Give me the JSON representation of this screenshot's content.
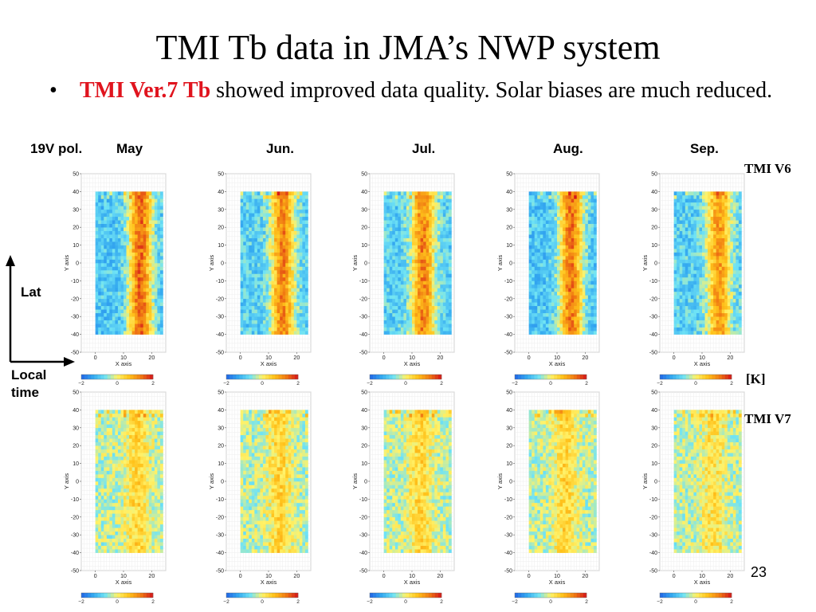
{
  "slide": {
    "title": "TMI Tb data in JMA’s NWP system",
    "bullet_marker": "•",
    "bullet_highlight": "TMI Ver.7 Tb",
    "bullet_rest": " showed improved data quality. Solar biases are much reduced.",
    "channel_label": "19V pol.",
    "row_labels": [
      "TMI V6",
      "TMI V7"
    ],
    "unit_label": "[K]",
    "lat_label": "Lat",
    "local_time_label": "Local time",
    "page_number": "23"
  },
  "chart_data": {
    "type": "heatmap",
    "months": [
      "May",
      "Jun.",
      "Jul.",
      "Aug.",
      "Sep."
    ],
    "versions": [
      "TMI V6",
      "TMI V7"
    ],
    "xlabel": "X axis",
    "ylabel": "Y axis",
    "xlim": [
      -5,
      25
    ],
    "ylim": [
      -50,
      50
    ],
    "xticks": [
      0,
      10,
      20
    ],
    "yticks": [
      -50,
      -40,
      -30,
      -20,
      -10,
      0,
      10,
      20,
      30,
      40,
      50
    ],
    "data_x_range": [
      0,
      24
    ],
    "data_y_range": [
      -40,
      40
    ],
    "colorbar": {
      "range": [
        -2,
        2
      ],
      "ticks": [
        -2,
        0,
        2
      ],
      "colors": [
        "#2166e6",
        "#34a9f0",
        "#6fe3f5",
        "#fff36a",
        "#ffc21a",
        "#f07a12",
        "#d4141a"
      ]
    },
    "description_note": "",
    "panels": [
      {
        "version": "TMI V6",
        "month": "May",
        "bias_pattern": {
          "cold_side_value": -1.0,
          "warm_center_x": 16,
          "warm_peak_value": 1.4
        }
      },
      {
        "version": "TMI V6",
        "month": "Jun.",
        "bias_pattern": {
          "cold_side_value": -0.9,
          "warm_center_x": 15,
          "warm_peak_value": 1.2
        }
      },
      {
        "version": "TMI V6",
        "month": "Jul.",
        "bias_pattern": {
          "cold_side_value": -0.9,
          "warm_center_x": 14,
          "warm_peak_value": 1.2
        }
      },
      {
        "version": "TMI V6",
        "month": "Aug.",
        "bias_pattern": {
          "cold_side_value": -1.0,
          "warm_center_x": 15,
          "warm_peak_value": 1.3
        }
      },
      {
        "version": "TMI V6",
        "month": "Sep.",
        "bias_pattern": {
          "cold_side_value": -0.9,
          "warm_center_x": 16,
          "warm_peak_value": 1.0
        }
      },
      {
        "version": "TMI V7",
        "month": "May",
        "bias_pattern": {
          "cold_side_value": -0.3,
          "warm_center_x": 15,
          "warm_peak_value": 0.4
        }
      },
      {
        "version": "TMI V7",
        "month": "Jun.",
        "bias_pattern": {
          "cold_side_value": -0.3,
          "warm_center_x": 14,
          "warm_peak_value": 0.4
        }
      },
      {
        "version": "TMI V7",
        "month": "Jul.",
        "bias_pattern": {
          "cold_side_value": -0.3,
          "warm_center_x": 13,
          "warm_peak_value": 0.4
        }
      },
      {
        "version": "TMI V7",
        "month": "Aug.",
        "bias_pattern": {
          "cold_side_value": -0.3,
          "warm_center_x": 13,
          "warm_peak_value": 0.4
        }
      },
      {
        "version": "TMI V7",
        "month": "Sep.",
        "bias_pattern": {
          "cold_side_value": -0.3,
          "warm_center_x": 14,
          "warm_peak_value": 0.3
        }
      }
    ]
  }
}
